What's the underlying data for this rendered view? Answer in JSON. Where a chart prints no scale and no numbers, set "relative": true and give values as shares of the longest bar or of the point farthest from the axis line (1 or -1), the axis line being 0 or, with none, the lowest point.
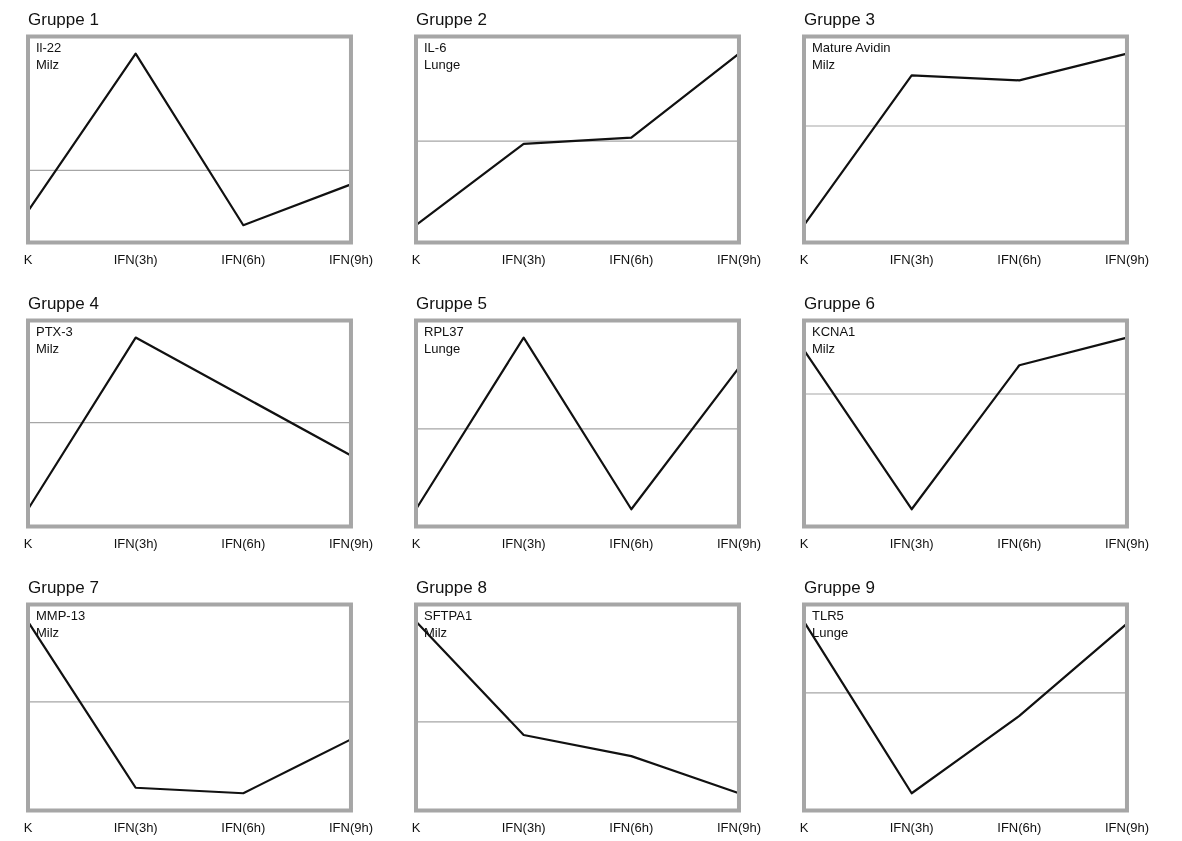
{
  "chart_data": [
    {
      "type": "line",
      "title": "Gruppe 1",
      "annotations": [
        "Il-22",
        "Milz"
      ],
      "relative": true,
      "categories": [
        "K",
        "IFN(3h)",
        "IFN(6h)",
        "IFN(9h)"
      ],
      "series": [
        {
          "color": "#111111",
          "values": [
            -0.35,
            1,
            -0.47,
            -0.12
          ]
        }
      ],
      "ref_lines": [
        {
          "axis": "y",
          "value": 0,
          "color": "#a6a6a6"
        }
      ],
      "legend": false,
      "grid": false,
      "marker": "none"
    },
    {
      "type": "line",
      "title": "Gruppe 2",
      "annotations": [
        "IL-6",
        "Lunge"
      ],
      "relative": true,
      "categories": [
        "K",
        "IFN(3h)",
        "IFN(6h)",
        "IFN(9h)"
      ],
      "series": [
        {
          "color": "#111111",
          "values": [
            -0.96,
            -0.03,
            0.04,
            1
          ]
        }
      ],
      "ref_lines": [
        {
          "axis": "y",
          "value": 0,
          "color": "#a6a6a6"
        }
      ],
      "legend": false,
      "grid": false,
      "marker": "none"
    },
    {
      "type": "line",
      "title": "Gruppe 3",
      "annotations": [
        "Mature Avidin",
        "Milz"
      ],
      "relative": true,
      "categories": [
        "K",
        "IFN(3h)",
        "IFN(6h)",
        "IFN(9h)"
      ],
      "series": [
        {
          "color": "#111111",
          "values": [
            -1,
            0.51,
            0.46,
            0.73
          ]
        }
      ],
      "ref_lines": [
        {
          "axis": "y",
          "value": 0,
          "color": "#a6a6a6"
        }
      ],
      "legend": false,
      "grid": false,
      "marker": "none"
    },
    {
      "type": "line",
      "title": "Gruppe 4",
      "annotations": [
        "PTX-3",
        "Milz"
      ],
      "relative": true,
      "categories": [
        "K",
        "IFN(3h)",
        "IFN(6h)",
        "IFN(9h)"
      ],
      "series": [
        {
          "color": "#111111",
          "values": [
            -1,
            0.98,
            0.3,
            -0.38
          ]
        }
      ],
      "ref_lines": [
        {
          "axis": "y",
          "value": 0,
          "color": "#a6a6a6"
        }
      ],
      "legend": false,
      "grid": false,
      "marker": "none"
    },
    {
      "type": "line",
      "title": "Gruppe 5",
      "annotations": [
        "RPL37",
        "Lunge"
      ],
      "relative": true,
      "categories": [
        "K",
        "IFN(3h)",
        "IFN(6h)",
        "IFN(9h)"
      ],
      "series": [
        {
          "color": "#111111",
          "values": [
            -0.88,
            1,
            -0.88,
            0.67
          ]
        }
      ],
      "ref_lines": [
        {
          "axis": "y",
          "value": 0,
          "color": "#a6a6a6"
        }
      ],
      "legend": false,
      "grid": false,
      "marker": "none"
    },
    {
      "type": "line",
      "title": "Gruppe 6",
      "annotations": [
        "KCNA1",
        "Milz"
      ],
      "relative": true,
      "categories": [
        "K",
        "IFN(3h)",
        "IFN(6h)",
        "IFN(9h)"
      ],
      "series": [
        {
          "color": "#111111",
          "values": [
            0.38,
            -1,
            0.25,
            0.49
          ]
        }
      ],
      "ref_lines": [
        {
          "axis": "y",
          "value": 0,
          "color": "#a6a6a6"
        }
      ],
      "legend": false,
      "grid": false,
      "marker": "none"
    },
    {
      "type": "line",
      "title": "Gruppe 7",
      "annotations": [
        "MMP-13",
        "Milz"
      ],
      "relative": true,
      "categories": [
        "K",
        "IFN(3h)",
        "IFN(6h)",
        "IFN(9h)"
      ],
      "series": [
        {
          "color": "#111111",
          "values": [
            0.88,
            -0.94,
            -1,
            -0.41
          ]
        }
      ],
      "ref_lines": [
        {
          "axis": "y",
          "value": 0,
          "color": "#a6a6a6"
        }
      ],
      "legend": false,
      "grid": false,
      "marker": "none"
    },
    {
      "type": "line",
      "title": "Gruppe 8",
      "annotations": [
        "SFTPA1",
        "Milz"
      ],
      "relative": true,
      "categories": [
        "K",
        "IFN(3h)",
        "IFN(6h)",
        "IFN(9h)"
      ],
      "series": [
        {
          "color": "#111111",
          "values": [
            1,
            -0.13,
            -0.34,
            -0.71
          ]
        }
      ],
      "ref_lines": [
        {
          "axis": "y",
          "value": 0,
          "color": "#a6a6a6"
        }
      ],
      "legend": false,
      "grid": false,
      "marker": "none"
    },
    {
      "type": "line",
      "title": "Gruppe 9",
      "annotations": [
        "TLR5",
        "Lunge"
      ],
      "relative": true,
      "categories": [
        "K",
        "IFN(3h)",
        "IFN(6h)",
        "IFN(9h)"
      ],
      "series": [
        {
          "color": "#111111",
          "values": [
            0.71,
            -1,
            -0.23,
            0.69
          ]
        }
      ],
      "ref_lines": [
        {
          "axis": "y",
          "value": 0,
          "color": "#a6a6a6"
        }
      ],
      "legend": false,
      "grid": false,
      "marker": "none"
    }
  ]
}
